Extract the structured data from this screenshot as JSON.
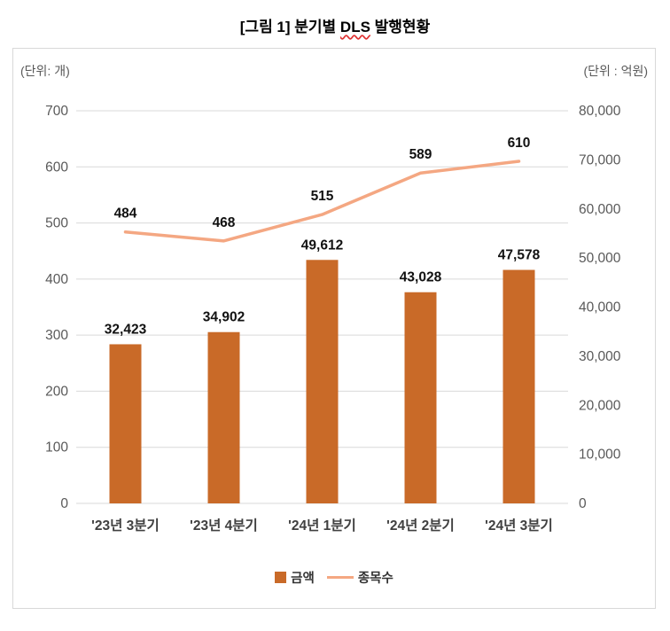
{
  "title": {
    "prefix": "[그림 1] 분기별 ",
    "highlight": "DLS",
    "suffix": " 발행현황"
  },
  "legend": {
    "amount_label": "금액",
    "count_label": "종목수"
  },
  "colors": {
    "bar": "#C96A28",
    "line": "#F4A782",
    "grid": "#D9D9D9",
    "axis_text": "#595959",
    "category_text": "#404040",
    "data_label_text": "#111111",
    "title_underline": "#E03131",
    "box_border": "#D8D8D8"
  },
  "chart_data": {
    "type": "bar",
    "subtype": "bar+line combo, dual axis",
    "title": "[그림 1] 분기별 DLS 발행현황",
    "categories": [
      "'23년 3분기",
      "'23년 4분기",
      "'24년 1분기",
      "'24년 2분기",
      "'24년 3분기"
    ],
    "series": [
      {
        "name": "금액",
        "type": "bar",
        "axis": "right",
        "values": [
          32423,
          34902,
          49612,
          43028,
          47578
        ]
      },
      {
        "name": "종목수",
        "type": "line",
        "axis": "left",
        "values": [
          484,
          468,
          515,
          589,
          610
        ]
      }
    ],
    "left_axis": {
      "label": "(단위: 개)",
      "min": 0,
      "max": 700,
      "step": 100
    },
    "right_axis": {
      "label": "(단위 : 억원)",
      "min": 0,
      "max": 80000,
      "step": 10000
    },
    "grid": true,
    "legend_position": "bottom"
  }
}
